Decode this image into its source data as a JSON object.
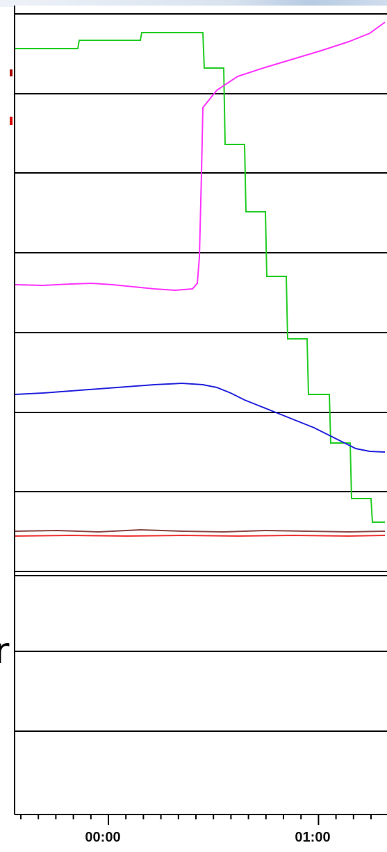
{
  "chart_data": {
    "type": "line",
    "x_tick_labels": [
      "00:00",
      "01:00"
    ],
    "y_gridline_count": 11,
    "grid": "horizontal",
    "legend": "none",
    "background": "#ffffff",
    "series": [
      {
        "color": "#22cc22",
        "style": "step",
        "points": [
          [
            0,
            70
          ],
          [
            90,
            70
          ],
          [
            92,
            58
          ],
          [
            180,
            58
          ],
          [
            182,
            47
          ],
          [
            270,
            47
          ],
          [
            272,
            98
          ],
          [
            300,
            98
          ],
          [
            302,
            208
          ],
          [
            330,
            208
          ],
          [
            332,
            305
          ],
          [
            360,
            305
          ],
          [
            362,
            398
          ],
          [
            390,
            398
          ],
          [
            392,
            488
          ],
          [
            420,
            488
          ],
          [
            422,
            568
          ],
          [
            452,
            568
          ],
          [
            454,
            638
          ],
          [
            482,
            638
          ],
          [
            484,
            718
          ],
          [
            512,
            718
          ],
          [
            514,
            752
          ],
          [
            532,
            752
          ]
        ]
      },
      {
        "color": "#ff33ff",
        "style": "line",
        "points": [
          [
            0,
            410
          ],
          [
            40,
            411
          ],
          [
            80,
            409
          ],
          [
            110,
            408
          ],
          [
            140,
            410
          ],
          [
            170,
            413
          ],
          [
            200,
            416
          ],
          [
            230,
            418
          ],
          [
            255,
            416
          ],
          [
            262,
            408
          ],
          [
            265,
            370
          ],
          [
            268,
            250
          ],
          [
            270,
            155
          ],
          [
            290,
            130
          ],
          [
            320,
            110
          ],
          [
            360,
            97
          ],
          [
            400,
            85
          ],
          [
            440,
            73
          ],
          [
            480,
            60
          ],
          [
            510,
            48
          ],
          [
            532,
            32
          ]
        ]
      },
      {
        "color": "#2222dd",
        "style": "step",
        "points": [
          [
            0,
            568
          ],
          [
            40,
            566
          ],
          [
            80,
            563
          ],
          [
            120,
            560
          ],
          [
            160,
            557
          ],
          [
            200,
            554
          ],
          [
            240,
            552
          ],
          [
            270,
            554
          ],
          [
            290,
            558
          ],
          [
            310,
            566
          ],
          [
            330,
            576
          ],
          [
            350,
            584
          ],
          [
            370,
            592
          ],
          [
            390,
            600
          ],
          [
            410,
            608
          ],
          [
            430,
            616
          ],
          [
            450,
            626
          ],
          [
            470,
            636
          ],
          [
            490,
            646
          ],
          [
            510,
            650
          ],
          [
            532,
            651
          ]
        ]
      },
      {
        "color": "#ee3333",
        "style": "line",
        "points": [
          [
            0,
            772
          ],
          [
            80,
            771
          ],
          [
            160,
            772
          ],
          [
            240,
            771
          ],
          [
            320,
            772
          ],
          [
            400,
            771
          ],
          [
            480,
            772
          ],
          [
            532,
            771
          ]
        ]
      },
      {
        "color": "#884444",
        "style": "line",
        "points": [
          [
            0,
            765
          ],
          [
            60,
            764
          ],
          [
            120,
            766
          ],
          [
            180,
            763
          ],
          [
            240,
            765
          ],
          [
            300,
            766
          ],
          [
            360,
            764
          ],
          [
            420,
            765
          ],
          [
            480,
            766
          ],
          [
            532,
            765
          ]
        ]
      }
    ]
  }
}
